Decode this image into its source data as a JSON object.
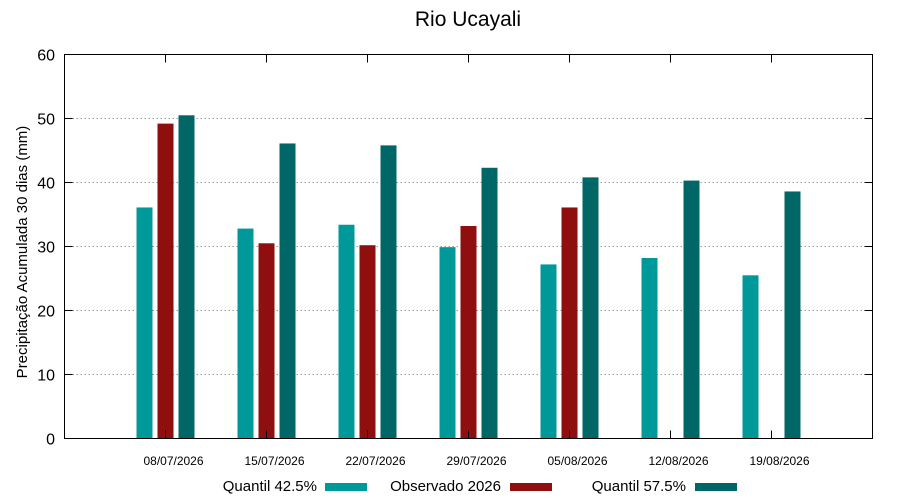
{
  "chart_data": {
    "type": "bar",
    "title": "Rio Ucayali",
    "xlabel": "",
    "ylabel": "Precipitação Acumulada 30 dias (mm)",
    "ylim": [
      0,
      60
    ],
    "yticks": [
      0,
      10,
      20,
      30,
      40,
      50,
      60
    ],
    "grid": true,
    "legend_position": "bottom",
    "categories": [
      "08/07/2026",
      "15/07/2026",
      "22/07/2026",
      "29/07/2026",
      "05/08/2026",
      "12/08/2026",
      "19/08/2026"
    ],
    "series": [
      {
        "name": "Quantil 42.5%",
        "color": "#009999",
        "values": [
          36.1,
          32.8,
          33.4,
          29.9,
          27.2,
          28.2,
          25.5
        ]
      },
      {
        "name": "Observado 2026",
        "color": "#8f0e0e",
        "values": [
          49.2,
          30.5,
          30.2,
          33.2,
          36.1,
          null,
          null
        ]
      },
      {
        "name": "Quantil 57.5%",
        "color": "#006666",
        "values": [
          50.5,
          46.1,
          45.8,
          42.3,
          40.8,
          40.3,
          38.6
        ]
      }
    ]
  }
}
